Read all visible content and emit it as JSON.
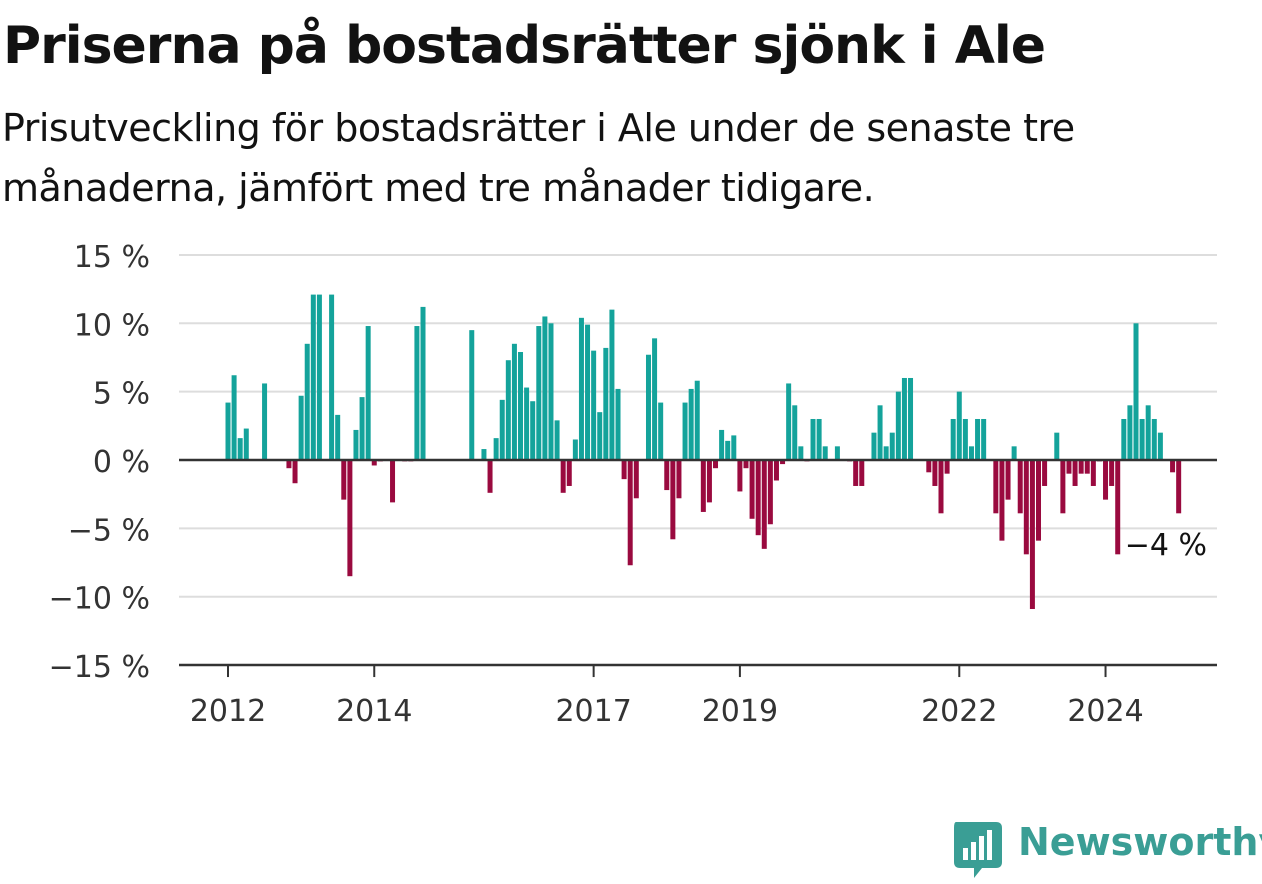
{
  "header": {
    "title": "Priserna på bostadsrätter sjönk i Ale",
    "subtitle": "Prisutveckling för bostadsrätter i Ale under de senaste tre månaderna, jämfört med tre månader tidigare."
  },
  "brand": {
    "name": "Newsworthy",
    "icon": "newsworthy-logo-icon",
    "color": "#3a9e95"
  },
  "colors": {
    "positive": "#14a39b",
    "negative": "#9a0a3f",
    "grid": "#dddddd",
    "axis": "#333333"
  },
  "chart_data": {
    "type": "bar",
    "y_ticks": [
      "15 %",
      "10 %",
      "5 %",
      "0 %",
      "−5 %",
      "−10 %",
      "−15 %"
    ],
    "y_tick_values": [
      15,
      10,
      5,
      0,
      -5,
      -10,
      -15
    ],
    "ylim": [
      -15,
      15
    ],
    "x_ticks": [
      {
        "label": "2012",
        "date": "2012-01"
      },
      {
        "label": "2014",
        "date": "2014-01"
      },
      {
        "label": "2017",
        "date": "2017-01"
      },
      {
        "label": "2019",
        "date": "2019-01"
      },
      {
        "label": "2022",
        "date": "2022-01"
      },
      {
        "label": "2024",
        "date": "2024-01"
      }
    ],
    "grid": true,
    "annotation": {
      "label": "−4 %",
      "date": "2024-09",
      "value": -4
    },
    "months": [
      [
        "2012-01",
        4.2
      ],
      [
        "2012-02",
        6.2
      ],
      [
        "2012-03",
        1.6
      ],
      [
        "2012-04",
        2.3
      ],
      [
        "2012-07",
        5.6
      ],
      [
        "2012-11",
        -0.6
      ],
      [
        "2012-12",
        -1.7
      ],
      [
        "2013-01",
        4.7
      ],
      [
        "2013-02",
        8.5
      ],
      [
        "2013-03",
        12.1
      ],
      [
        "2013-04",
        12.1
      ],
      [
        "2013-06",
        12.1
      ],
      [
        "2013-07",
        3.3
      ],
      [
        "2013-08",
        -2.9
      ],
      [
        "2013-09",
        -8.5
      ],
      [
        "2013-10",
        2.2
      ],
      [
        "2013-11",
        4.6
      ],
      [
        "2013-12",
        9.8
      ],
      [
        "2014-01",
        -0.4
      ],
      [
        "2014-02",
        -0.1
      ],
      [
        "2014-04",
        -3.1
      ],
      [
        "2014-06",
        -0.1
      ],
      [
        "2014-07",
        -0.1
      ],
      [
        "2014-08",
        9.8
      ],
      [
        "2014-09",
        11.2
      ],
      [
        "2015-05",
        9.5
      ],
      [
        "2015-07",
        0.8
      ],
      [
        "2015-08",
        -2.4
      ],
      [
        "2015-09",
        1.6
      ],
      [
        "2015-10",
        4.4
      ],
      [
        "2015-11",
        7.3
      ],
      [
        "2015-12",
        8.5
      ],
      [
        "2016-01",
        7.9
      ],
      [
        "2016-02",
        5.3
      ],
      [
        "2016-03",
        4.3
      ],
      [
        "2016-04",
        9.8
      ],
      [
        "2016-05",
        10.5
      ],
      [
        "2016-06",
        10.0
      ],
      [
        "2016-07",
        2.9
      ],
      [
        "2016-08",
        -2.4
      ],
      [
        "2016-09",
        -1.9
      ],
      [
        "2016-10",
        1.5
      ],
      [
        "2016-11",
        10.4
      ],
      [
        "2016-12",
        9.9
      ],
      [
        "2017-01",
        8.0
      ],
      [
        "2017-02",
        3.5
      ],
      [
        "2017-03",
        8.2
      ],
      [
        "2017-04",
        11.0
      ],
      [
        "2017-05",
        5.2
      ],
      [
        "2017-06",
        -1.4
      ],
      [
        "2017-07",
        -7.7
      ],
      [
        "2017-08",
        -2.8
      ],
      [
        "2017-10",
        7.7
      ],
      [
        "2017-11",
        8.9
      ],
      [
        "2017-12",
        4.2
      ],
      [
        "2018-01",
        -2.2
      ],
      [
        "2018-02",
        -5.8
      ],
      [
        "2018-03",
        -2.8
      ],
      [
        "2018-04",
        4.2
      ],
      [
        "2018-05",
        5.2
      ],
      [
        "2018-06",
        5.8
      ],
      [
        "2018-07",
        -3.8
      ],
      [
        "2018-08",
        -3.1
      ],
      [
        "2018-09",
        -0.6
      ],
      [
        "2018-10",
        2.2
      ],
      [
        "2018-11",
        1.4
      ],
      [
        "2018-12",
        1.8
      ],
      [
        "2019-01",
        -2.3
      ],
      [
        "2019-02",
        -0.6
      ],
      [
        "2019-03",
        -4.3
      ],
      [
        "2019-04",
        -5.5
      ],
      [
        "2019-05",
        -6.5
      ],
      [
        "2019-06",
        -4.7
      ],
      [
        "2019-07",
        -1.5
      ],
      [
        "2019-08",
        -0.3
      ],
      [
        "2019-09",
        5.6
      ],
      [
        "2019-10",
        4.0
      ],
      [
        "2019-11",
        1.0
      ],
      [
        "2019-12",
        -0.1
      ],
      [
        "2020-01",
        3.0
      ],
      [
        "2020-02",
        3.0
      ],
      [
        "2020-03",
        1.0
      ],
      [
        "2020-05",
        1.0
      ],
      [
        "2020-07",
        -0.1
      ],
      [
        "2020-08",
        -1.9
      ],
      [
        "2020-09",
        -1.9
      ],
      [
        "2020-11",
        2.0
      ],
      [
        "2020-12",
        4.0
      ],
      [
        "2021-01",
        1.0
      ],
      [
        "2021-02",
        2.0
      ],
      [
        "2021-03",
        5.0
      ],
      [
        "2021-04",
        6.0
      ],
      [
        "2021-05",
        6.0
      ],
      [
        "2021-08",
        -0.9
      ],
      [
        "2021-09",
        -1.9
      ],
      [
        "2021-10",
        -3.9
      ],
      [
        "2021-11",
        -1.0
      ],
      [
        "2021-12",
        3.0
      ],
      [
        "2022-01",
        5.0
      ],
      [
        "2022-02",
        3.0
      ],
      [
        "2022-03",
        1.0
      ],
      [
        "2022-04",
        3.0
      ],
      [
        "2022-05",
        3.0
      ],
      [
        "2022-07",
        -3.9
      ],
      [
        "2022-08",
        -5.9
      ],
      [
        "2022-09",
        -2.9
      ],
      [
        "2022-10",
        1.0
      ],
      [
        "2022-11",
        -3.9
      ],
      [
        "2022-12",
        -6.9
      ],
      [
        "2023-01",
        -10.9
      ],
      [
        "2023-02",
        -5.9
      ],
      [
        "2023-03",
        -1.9
      ],
      [
        "2023-05",
        2.0
      ],
      [
        "2023-06",
        -3.9
      ],
      [
        "2023-07",
        -1.0
      ],
      [
        "2023-08",
        -1.9
      ],
      [
        "2023-09",
        -1.0
      ],
      [
        "2023-10",
        -1.0
      ],
      [
        "2023-11",
        -1.9
      ],
      [
        "2023-12",
        -0.1
      ],
      [
        "2024-01",
        -2.9
      ],
      [
        "2024-02",
        -1.9
      ],
      [
        "2024-03",
        -6.9
      ],
      [
        "2024-04",
        3.0
      ],
      [
        "2024-05",
        4.0
      ],
      [
        "2024-06",
        10.0
      ],
      [
        "2024-07",
        3.0
      ],
      [
        "2024-08",
        4.0
      ],
      [
        "2024-09",
        3.0
      ],
      [
        "2024-10",
        2.0
      ],
      [
        "2024-12",
        -0.9
      ],
      [
        "2025-01",
        -3.9
      ]
    ]
  }
}
